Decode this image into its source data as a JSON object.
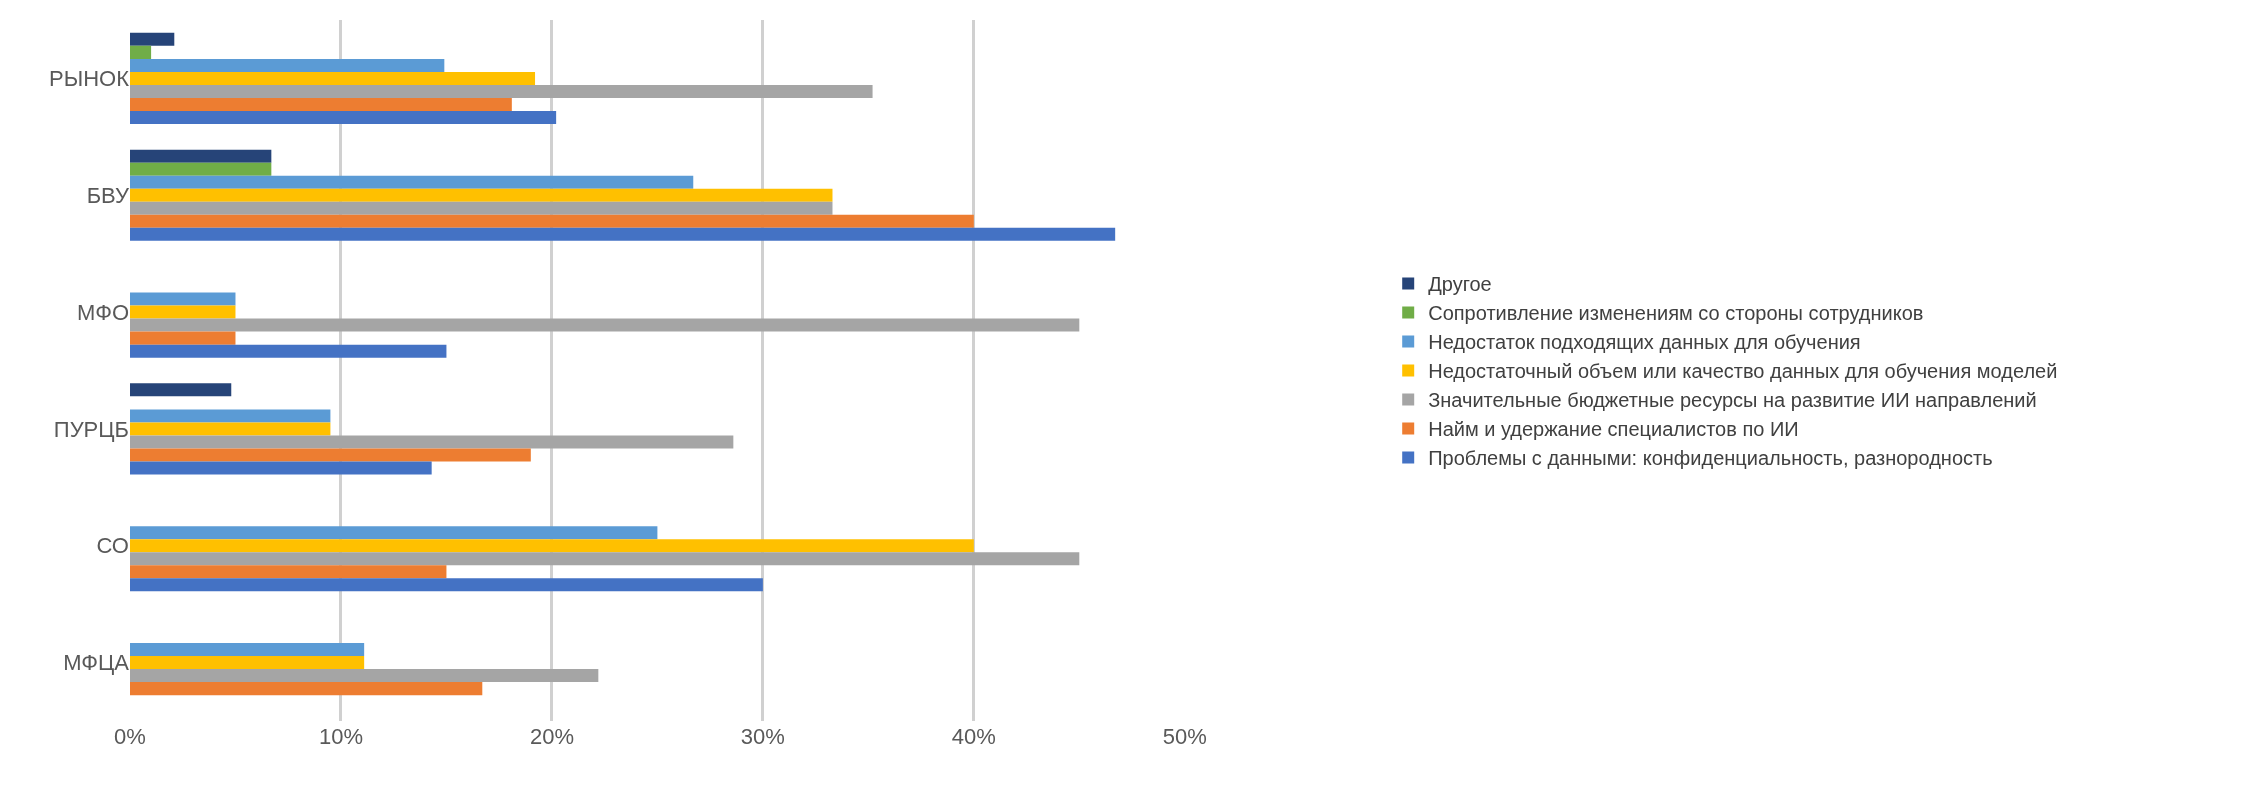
{
  "chart_data": {
    "type": "bar",
    "orientation": "horizontal",
    "categories": [
      "РЫНОК",
      "БВУ",
      "МФО",
      "ПУРЦБ",
      "СО",
      "МФЦА"
    ],
    "series": [
      {
        "name": "Другое",
        "color": "#264478",
        "values": [
          2.1,
          6.7,
          null,
          4.8,
          null,
          null
        ]
      },
      {
        "name": "Сопротивление изменениям со стороны сотрудников",
        "color": "#70ad47",
        "values": [
          1.0,
          6.7,
          null,
          null,
          null,
          null
        ]
      },
      {
        "name": "Недостаток подходящих данных для обучения",
        "color": "#5b9bd5",
        "values": [
          14.9,
          26.7,
          5,
          9.5,
          25,
          11.1
        ]
      },
      {
        "name": "Недостаточный объем или качество данных для обучения моделей",
        "color": "#ffc000",
        "values": [
          19.2,
          33.3,
          5,
          9.5,
          40,
          11.1
        ]
      },
      {
        "name": "Значительные бюджетные ресурсы на развитие ИИ направлений",
        "color": "#a5a5a5",
        "values": [
          35.2,
          33.3,
          45,
          28.6,
          45,
          22.2
        ]
      },
      {
        "name": "Найм и удержание специалистов по ИИ",
        "color": "#ed7d31",
        "values": [
          18.1,
          40,
          5,
          19.0,
          15,
          16.7
        ]
      },
      {
        "name": "Проблемы с данными: конфиденциальность, разнородность",
        "color": "#4472c4",
        "values": [
          20.2,
          46.7,
          15,
          14.3,
          30,
          null
        ]
      }
    ],
    "xlim": [
      0,
      50
    ],
    "xticks": [
      {
        "value": 0,
        "label": "0%"
      },
      {
        "value": 10,
        "label": "10%"
      },
      {
        "value": 20,
        "label": "20%"
      },
      {
        "value": 30,
        "label": "30%"
      },
      {
        "value": 40,
        "label": "40%"
      },
      {
        "value": 50,
        "label": "50%"
      }
    ],
    "grid": "x",
    "legend": "right"
  }
}
